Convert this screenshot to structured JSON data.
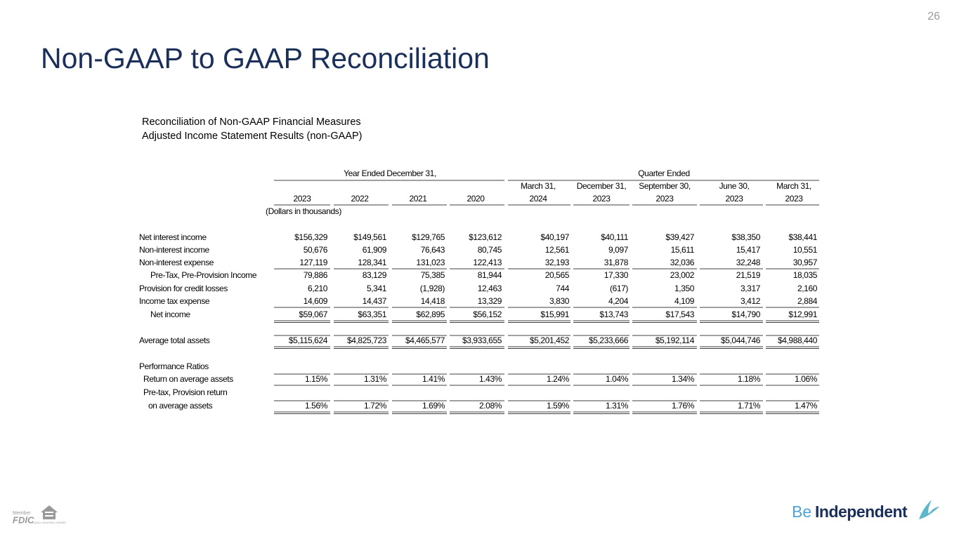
{
  "page_number": "26",
  "title": "Non-GAAP to GAAP Reconciliation",
  "subtitle": [
    "Reconciliation of Non-GAAP Financial Measures",
    "Adjusted Income Statement Results (non-GAAP)"
  ],
  "table": {
    "groups": [
      "Year Ended December 31,",
      "Quarter Ended"
    ],
    "columns": [
      [
        "",
        "2023"
      ],
      [
        "",
        "2022"
      ],
      [
        "",
        "2021"
      ],
      [
        "",
        "2020"
      ],
      [
        "March 31,",
        "2024"
      ],
      [
        "December 31,",
        "2023"
      ],
      [
        "September 30,",
        "2023"
      ],
      [
        "June 30,",
        "2023"
      ],
      [
        "March 31,",
        "2023"
      ]
    ],
    "units": "(Dollars in thousands)",
    "rows": [
      {
        "label": "Net interest income",
        "values": [
          "$156,329",
          "$149,561",
          "$129,765",
          "$123,612",
          "$40,197",
          "$40,111",
          "$39,427",
          "$38,350",
          "$38,441"
        ]
      },
      {
        "label": "Non-interest income",
        "values": [
          "50,676",
          "61,909",
          "76,643",
          "80,745",
          "12,561",
          "9,097",
          "15,611",
          "15,417",
          "10,551"
        ]
      },
      {
        "label": "Non-interest expense",
        "values": [
          "127,119",
          "128,341",
          "131,023",
          "122,413",
          "32,193",
          "31,878",
          "32,036",
          "32,248",
          "30,957"
        ]
      },
      {
        "label": "Pre-Tax, Pre-Provision Income",
        "values": [
          "79,886",
          "83,129",
          "75,385",
          "81,944",
          "20,565",
          "17,330",
          "23,002",
          "21,519",
          "18,035"
        ]
      },
      {
        "label": "Provision for credit losses",
        "values": [
          "6,210",
          "5,341",
          "(1,928)",
          "12,463",
          "744",
          "(617)",
          "1,350",
          "3,317",
          "2,160"
        ]
      },
      {
        "label": "Income tax expense",
        "values": [
          "14,609",
          "14,437",
          "14,418",
          "13,329",
          "3,830",
          "4,204",
          "4,109",
          "3,412",
          "2,884"
        ]
      },
      {
        "label": "Net income",
        "values": [
          "$59,067",
          "$63,351",
          "$62,895",
          "$56,152",
          "$15,991",
          "$13,743",
          "$17,543",
          "$14,790",
          "$12,991"
        ]
      },
      {
        "label": "Average total assets",
        "values": [
          "$5,115,624",
          "$4,825,723",
          "$4,465,577",
          "$3,933,655",
          "$5,201,452",
          "$5,233,666",
          "$5,192,114",
          "$5,044,746",
          "$4,988,440"
        ]
      },
      {
        "label": "Performance Ratios"
      },
      {
        "label": "Return on average assets",
        "values": [
          "1.15%",
          "1.31%",
          "1.41%",
          "1.43%",
          "1.24%",
          "1.04%",
          "1.34%",
          "1.18%",
          "1.06%"
        ]
      },
      {
        "label": "Pre-tax, Provision return"
      },
      {
        "label": "on average assets",
        "values": [
          "1.56%",
          "1.72%",
          "1.69%",
          "2.08%",
          "1.59%",
          "1.31%",
          "1.76%",
          "1.71%",
          "1.47%"
        ]
      }
    ]
  },
  "footer": {
    "member": "Member",
    "fdic": "FDIC",
    "lender": "EQUAL HOUSING LENDER",
    "logo_be": "Be",
    "logo_name": "Independent"
  }
}
